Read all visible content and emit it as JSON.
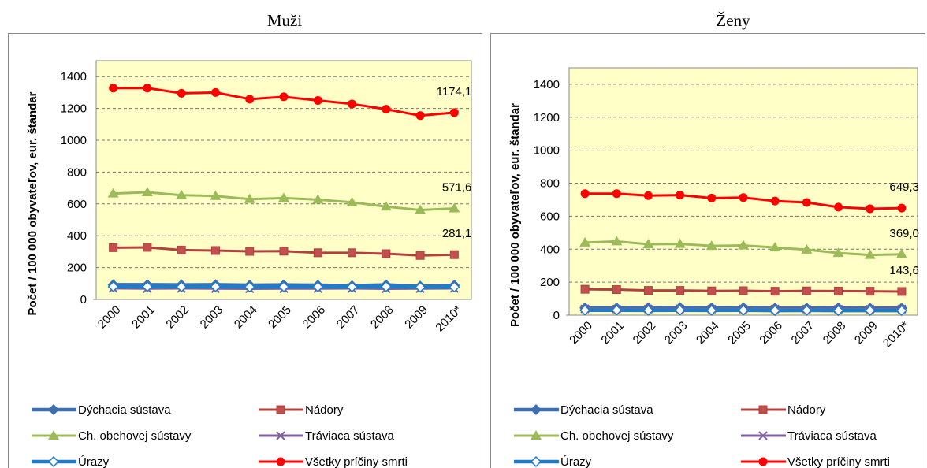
{
  "chart_data": [
    {
      "type": "line",
      "title": "Muži",
      "y_label": "Počet / 100 000 obyvateľov, eur. štandar",
      "categories": [
        "2000",
        "2001",
        "2002",
        "2003",
        "2004",
        "2005",
        "2006",
        "2007",
        "2008",
        "2009",
        "2010*"
      ],
      "ylim": [
        0,
        1500
      ],
      "yticks": [
        0,
        200,
        400,
        600,
        800,
        1000,
        1200,
        1400
      ],
      "grid": true,
      "series": [
        {
          "name": "Dýchacia sústava",
          "color": "#3d6eb0",
          "marker": "diamond",
          "values": [
            92,
            92,
            91,
            92,
            89,
            91,
            89,
            86,
            91,
            83,
            89
          ]
        },
        {
          "name": "Nádory",
          "color": "#b2403d",
          "marker": "square",
          "values": [
            325,
            327,
            310,
            307,
            302,
            303,
            293,
            293,
            287,
            276,
            281.1
          ],
          "value_labels": [
            null,
            null,
            null,
            null,
            null,
            null,
            null,
            null,
            null,
            null,
            "281,1"
          ]
        },
        {
          "name": "Ch. obehovej sústavy",
          "color": "#9bbb59",
          "marker": "triangle",
          "values": [
            665,
            673,
            655,
            650,
            630,
            637,
            627,
            610,
            583,
            562,
            571.6
          ],
          "value_labels": [
            null,
            null,
            null,
            null,
            null,
            null,
            null,
            null,
            null,
            null,
            "571,6"
          ]
        },
        {
          "name": "Tráviaca sústava",
          "color": "#7f5fa0",
          "marker": "x",
          "values": [
            70,
            68,
            69,
            68,
            67,
            68,
            68,
            69,
            67,
            68,
            69
          ]
        },
        {
          "name": "Úrazy",
          "color": "#1f7cc8",
          "marker": "open-diamond",
          "values": [
            80,
            80,
            79,
            80,
            78,
            79,
            79,
            78,
            80,
            77,
            78
          ]
        },
        {
          "name": "Všetky príčiny smrti",
          "color": "#ff0000",
          "marker": "circle",
          "values": [
            1328,
            1328,
            1295,
            1300,
            1258,
            1273,
            1250,
            1228,
            1195,
            1155,
            1174.1
          ],
          "value_labels": [
            null,
            null,
            null,
            null,
            null,
            null,
            null,
            null,
            null,
            null,
            "1174,1"
          ]
        }
      ]
    },
    {
      "type": "line",
      "title": "Ženy",
      "y_label": "Počet / 100 000 obyvateľov, eur. štandar",
      "categories": [
        "2000",
        "2001",
        "2002",
        "2003",
        "2004",
        "2005",
        "2006",
        "2007",
        "2008",
        "2009",
        "2010*"
      ],
      "ylim": [
        0,
        1500
      ],
      "yticks": [
        0,
        200,
        400,
        600,
        800,
        1000,
        1200,
        1400
      ],
      "grid": true,
      "series": [
        {
          "name": "Dýchacia sústava",
          "color": "#3d6eb0",
          "marker": "diamond",
          "values": [
            44,
            44,
            45,
            46,
            44,
            45,
            43,
            43,
            44,
            42,
            43
          ]
        },
        {
          "name": "Nádory",
          "color": "#b2403d",
          "marker": "square",
          "values": [
            157,
            155,
            150,
            150,
            147,
            148,
            145,
            147,
            146,
            145,
            143.6
          ],
          "value_labels": [
            null,
            null,
            null,
            null,
            null,
            null,
            null,
            null,
            null,
            null,
            "143,6"
          ]
        },
        {
          "name": "Ch. obehovej sústavy",
          "color": "#9bbb59",
          "marker": "triangle",
          "values": [
            440,
            447,
            430,
            432,
            420,
            423,
            410,
            397,
            377,
            365,
            369
          ],
          "value_labels": [
            null,
            null,
            null,
            null,
            null,
            null,
            null,
            null,
            null,
            null,
            "369,0"
          ]
        },
        {
          "name": "Tráviaca sústava",
          "color": "#7f5fa0",
          "marker": "x",
          "values": [
            38,
            37,
            37,
            38,
            37,
            37,
            37,
            37,
            36,
            36,
            37
          ]
        },
        {
          "name": "Úrazy",
          "color": "#1f7cc8",
          "marker": "open-diamond",
          "values": [
            30,
            30,
            29,
            30,
            29,
            30,
            28,
            29,
            28,
            28,
            28
          ]
        },
        {
          "name": "Všetky príčiny smrti",
          "color": "#ff0000",
          "marker": "circle",
          "values": [
            737,
            737,
            725,
            728,
            710,
            713,
            692,
            683,
            655,
            645,
            649.3
          ],
          "value_labels": [
            null,
            null,
            null,
            null,
            null,
            null,
            null,
            null,
            null,
            null,
            "649,3"
          ]
        }
      ]
    }
  ]
}
